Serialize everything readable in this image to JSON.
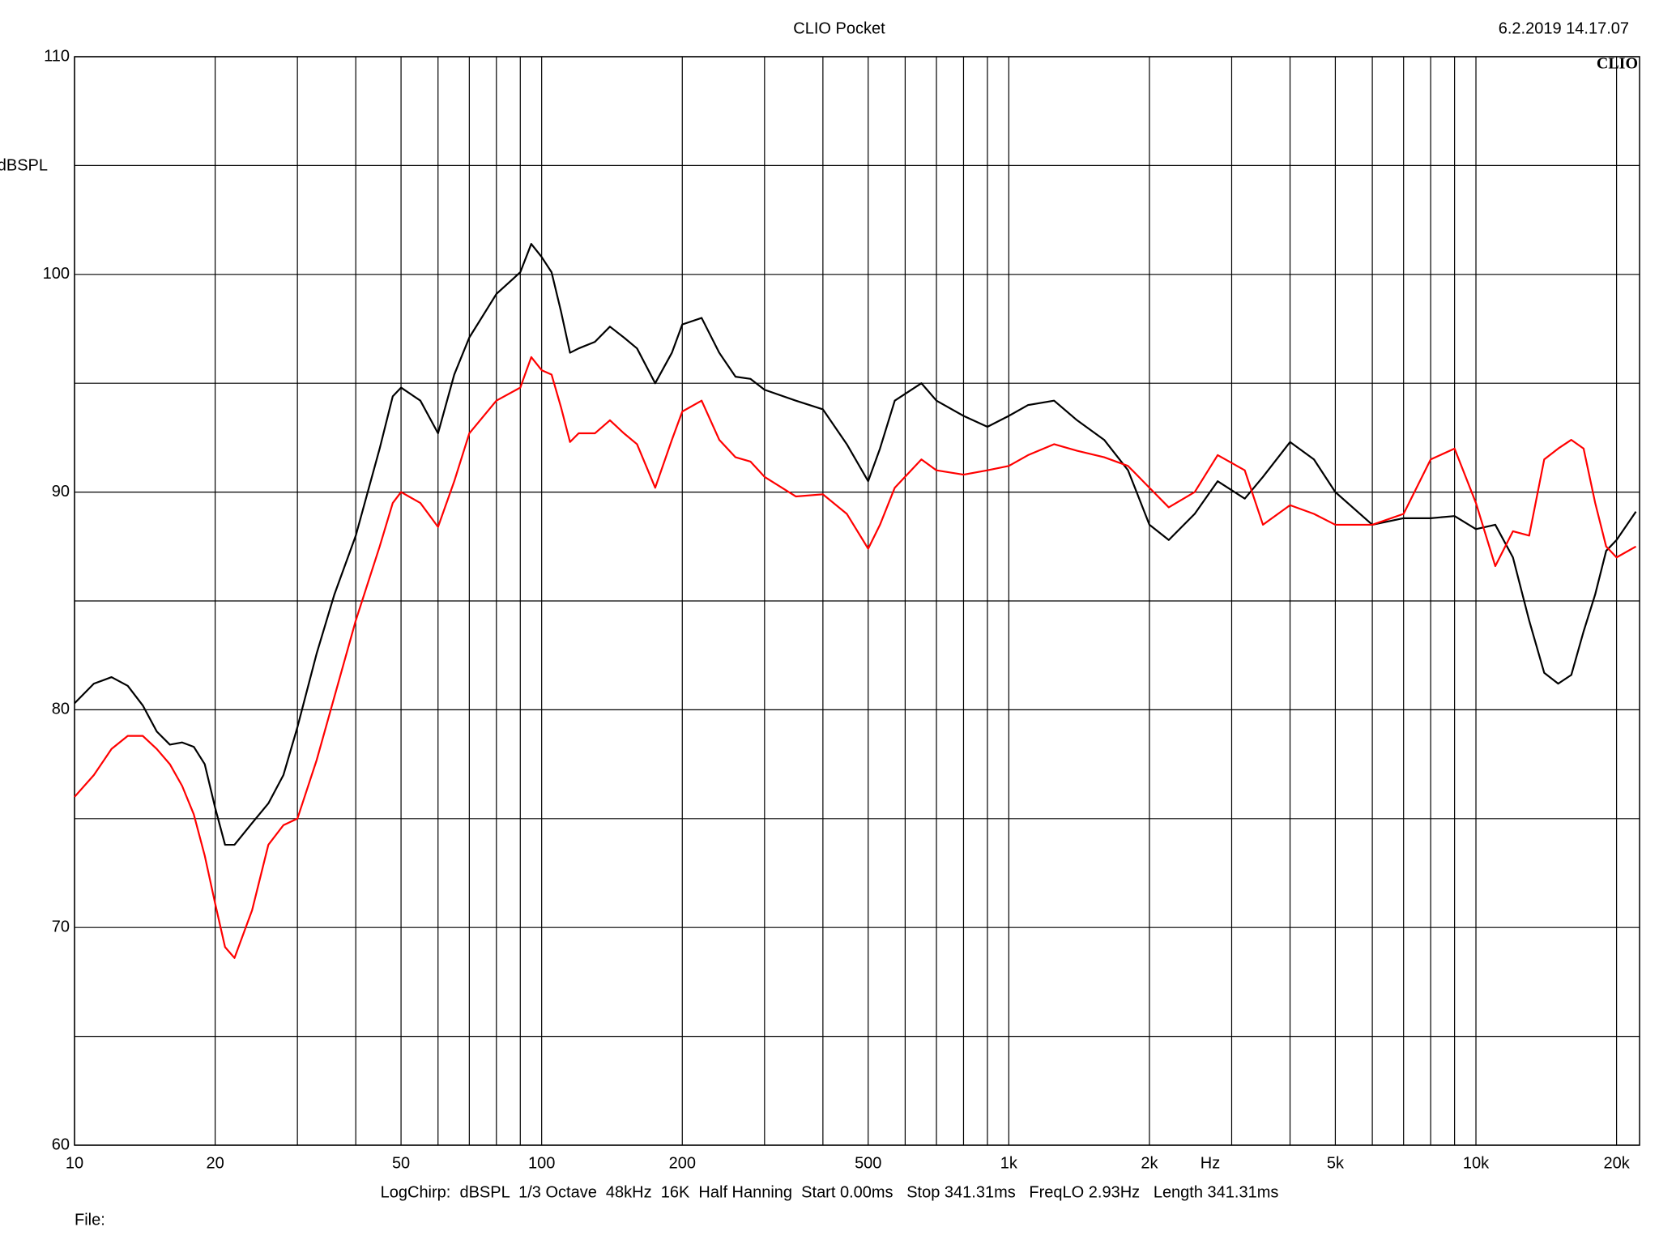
{
  "chart_data": {
    "type": "line",
    "title": "CLIO Pocket",
    "timestamp": "6.2.2019 14.17.07",
    "logo": "CLIO",
    "ylabel": "dBSPL",
    "xlabel": "Hz",
    "settings": "LogChirp:  dBSPL  1/3 Octave  48kHz  16K  Half Hanning  Start 0.00ms   Stop 341.31ms   FreqLO 2.93Hz   Length 341.31ms",
    "file_label": "File:",
    "xscale": "log",
    "grid": true,
    "xlim": [
      10,
      22400
    ],
    "ylim": [
      60,
      110
    ],
    "yticks": [
      60,
      70,
      80,
      90,
      100,
      110
    ],
    "yminor": [
      65,
      75,
      85,
      95,
      105
    ],
    "xticks": [
      10,
      20,
      50,
      100,
      200,
      500,
      {
        "value": 1000,
        "label": "1k"
      },
      {
        "value": 2000,
        "label": "2k"
      },
      {
        "value": 5000,
        "label": "5k"
      },
      {
        "value": 10000,
        "label": "10k"
      },
      {
        "value": 20000,
        "label": "20k"
      }
    ],
    "xminor": [
      30,
      40,
      60,
      70,
      80,
      90,
      300,
      400,
      600,
      700,
      800,
      900,
      3000,
      4000,
      6000,
      7000,
      8000,
      9000
    ],
    "x": [
      10,
      11,
      12,
      13,
      14,
      15,
      16,
      17,
      18,
      19,
      20,
      21,
      22,
      24,
      26,
      28,
      30,
      33,
      36,
      40,
      45,
      48,
      50,
      55,
      60,
      65,
      70,
      80,
      90,
      95,
      100,
      105,
      110,
      115,
      120,
      130,
      140,
      150,
      160,
      175,
      190,
      200,
      220,
      240,
      260,
      280,
      300,
      350,
      400,
      450,
      500,
      530,
      570,
      650,
      700,
      800,
      900,
      1000,
      1100,
      1250,
      1400,
      1600,
      1800,
      2000,
      2200,
      2500,
      2800,
      3200,
      3500,
      4000,
      4500,
      5000,
      6000,
      7000,
      8000,
      9000,
      10000,
      11000,
      12000,
      13000,
      14000,
      15000,
      16000,
      17000,
      18000,
      19000,
      20000,
      22000
    ],
    "series": [
      {
        "color": "#000000",
        "values": [
          80.3,
          81.2,
          81.5,
          81.1,
          80.2,
          79.0,
          78.4,
          78.5,
          78.3,
          77.5,
          75.5,
          73.8,
          73.8,
          74.8,
          75.7,
          77.0,
          79.2,
          82.6,
          85.3,
          88.0,
          92.0,
          94.4,
          94.8,
          94.2,
          92.7,
          95.4,
          97.1,
          99.1,
          100.1,
          101.4,
          100.8,
          100.1,
          98.3,
          96.4,
          96.6,
          96.9,
          97.6,
          97.1,
          96.6,
          95.0,
          96.4,
          97.7,
          98.0,
          96.4,
          95.3,
          95.2,
          94.7,
          94.2,
          93.8,
          92.2,
          90.5,
          92.0,
          94.2,
          95.0,
          94.2,
          93.5,
          93.0,
          93.5,
          94.0,
          94.2,
          93.3,
          92.4,
          91.0,
          88.5,
          87.8,
          89.0,
          90.5,
          89.7,
          90.7,
          92.3,
          91.5,
          90.0,
          88.5,
          88.8,
          88.8,
          88.9,
          88.3,
          88.5,
          87.0,
          84.1,
          81.7,
          81.2,
          81.6,
          83.6,
          85.3,
          87.3,
          87.8,
          89.1
        ]
      },
      {
        "color": "#ff0000",
        "values": [
          76.0,
          77.0,
          78.2,
          78.8,
          78.8,
          78.2,
          77.5,
          76.5,
          75.2,
          73.3,
          71.1,
          69.1,
          68.6,
          70.8,
          73.8,
          74.7,
          75.0,
          77.7,
          80.6,
          84.1,
          87.5,
          89.5,
          90.0,
          89.5,
          88.4,
          90.5,
          92.7,
          94.2,
          94.8,
          96.2,
          95.6,
          95.4,
          93.9,
          92.3,
          92.7,
          92.7,
          93.3,
          92.7,
          92.2,
          90.2,
          92.4,
          93.7,
          94.2,
          92.4,
          91.6,
          91.4,
          90.7,
          89.8,
          89.9,
          89.0,
          87.4,
          88.5,
          90.2,
          91.5,
          91.0,
          90.8,
          91.0,
          91.2,
          91.7,
          92.2,
          91.9,
          91.6,
          91.2,
          90.2,
          89.3,
          90.0,
          91.7,
          91.0,
          88.5,
          89.4,
          89.0,
          88.5,
          88.5,
          89.0,
          91.5,
          92.0,
          89.5,
          86.6,
          88.2,
          88.0,
          91.5,
          92.0,
          92.4,
          92.0,
          89.5,
          87.5,
          87.0,
          87.5
        ]
      }
    ]
  }
}
